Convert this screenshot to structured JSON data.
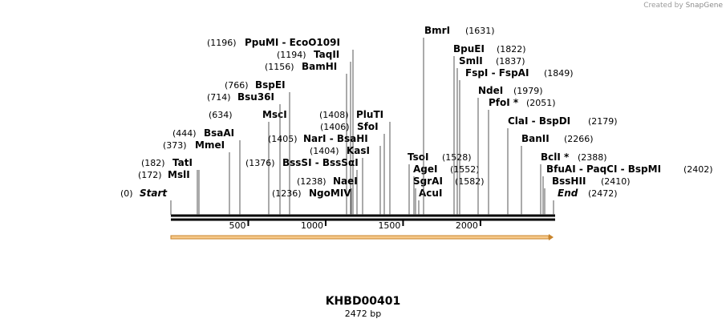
{
  "credit": {
    "prefix": "Created by",
    "brand": "SnapGene"
  },
  "sequence": {
    "name": "KHBD00401",
    "length_label": "2472 bp",
    "length": 2472
  },
  "ruler_ticks": [
    "500",
    "1000",
    "1500",
    "2000"
  ],
  "sites": [
    {
      "pos": "(0)",
      "name": "Start",
      "italic": true
    },
    {
      "pos": "(172)",
      "name": "MslI"
    },
    {
      "pos": "(182)",
      "name": "TatI"
    },
    {
      "pos": "(373)",
      "name": "MmeI"
    },
    {
      "pos": "(444)",
      "name": "BsaAI"
    },
    {
      "pos": "(634)",
      "name": "MscI"
    },
    {
      "pos": "(714)",
      "name": "Bsu36I"
    },
    {
      "pos": "(766)",
      "name": "BspEI"
    },
    {
      "pos": "(1156)",
      "name": "BamHI"
    },
    {
      "pos": "(1194)",
      "name": "TaqII"
    },
    {
      "pos": "(1196)",
      "name": "PpuMI  - EcoO109I"
    },
    {
      "pos": "(1236)",
      "name": "NgoMIV"
    },
    {
      "pos": "(1238)",
      "name": "NaeI"
    },
    {
      "pos": "(1376)",
      "name": "BssSI  - BssSαI"
    },
    {
      "pos": "(1404)",
      "name": "KasI"
    },
    {
      "pos": "(1405)",
      "name": "NarI  - BsaHI"
    },
    {
      "pos": "(1406)",
      "name": "SfoI"
    },
    {
      "pos": "(1408)",
      "name": "PluTI"
    },
    {
      "pos": "(1528)",
      "name": "TsoI"
    },
    {
      "pos": "(1552)",
      "name": "AgeI"
    },
    {
      "pos": "(1582)",
      "name": "SgrAI"
    },
    {
      "pos": "",
      "name": "AcuI"
    },
    {
      "pos": "(1631)",
      "name": "BmrI"
    },
    {
      "pos": "(1822)",
      "name": "BpuEI"
    },
    {
      "pos": "(1837)",
      "name": "SmlI"
    },
    {
      "pos": "(1849)",
      "name": "FspI  - FspAI"
    },
    {
      "pos": "(1979)",
      "name": "NdeI"
    },
    {
      "pos": "(2051)",
      "name": "PfoI *"
    },
    {
      "pos": "(2179)",
      "name": "ClaI  - BspDI"
    },
    {
      "pos": "(2266)",
      "name": "BanII"
    },
    {
      "pos": "(2388)",
      "name": "BclI *"
    },
    {
      "pos": "(2402)",
      "name": "BfuAI  - PaqCI  - BspMI"
    },
    {
      "pos": "(2410)",
      "name": "BssHII"
    },
    {
      "pos": "(2472)",
      "name": "End",
      "italic": true
    }
  ],
  "colors": {
    "feature_fill": "#f6c98a",
    "feature_stroke": "#c8842c",
    "backbone": "#000000",
    "line": "#555555"
  }
}
